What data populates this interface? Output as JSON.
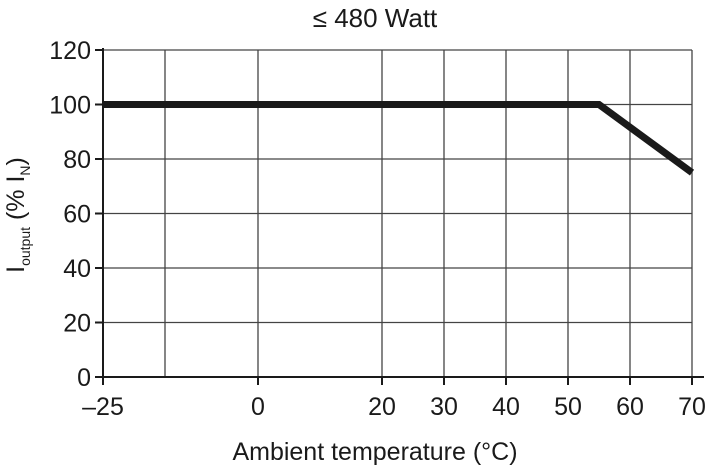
{
  "chart_data": {
    "type": "line",
    "title": "≤ 480 Watt",
    "xlabel": "Ambient temperature (°C)",
    "ylabel": {
      "main": "I",
      "sub": "output",
      "mid": " (% I",
      "sub2": "N",
      "end": ")"
    },
    "xlim": [
      -25,
      70
    ],
    "ylim": [
      0,
      120
    ],
    "x_ticks": [
      -25,
      0,
      20,
      30,
      40,
      50,
      60,
      70
    ],
    "x_tick_labels": [
      "–25",
      "0",
      "20",
      "30",
      "40",
      "50",
      "60",
      "70"
    ],
    "x_grid": [
      -25,
      -15,
      0,
      20,
      30,
      40,
      50,
      60,
      70
    ],
    "y_ticks": [
      0,
      20,
      40,
      60,
      80,
      100,
      120
    ],
    "y_tick_labels": [
      "0",
      "20",
      "40",
      "60",
      "80",
      "100",
      "120"
    ],
    "grid": true,
    "series": [
      {
        "x": [
          -25,
          55,
          70
        ],
        "y": [
          100,
          100,
          75
        ],
        "color": "#1a1a1a"
      }
    ]
  }
}
